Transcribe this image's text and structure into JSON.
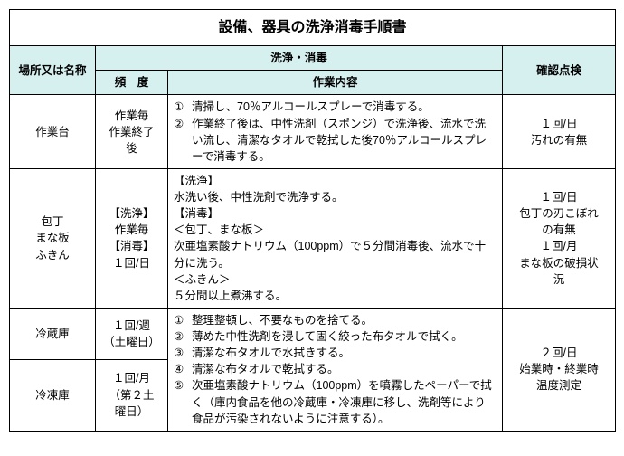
{
  "title": "設備、器具の洗浄消毒手順書",
  "headers": {
    "place": "場所又は名称",
    "clean_group": "洗浄・消毒",
    "freq": "頻　度",
    "work": "作業内容",
    "check": "確認点検"
  },
  "rows": {
    "r1": {
      "place": "作業台",
      "freq": "作業毎\n作業終了\n後",
      "work_items": [
        "清掃し、70％アルコールスプレーで消毒する。",
        "作業終了後は、中性洗剤（スポンジ）で洗浄後、流水で洗い流し、清潔なタオルで乾拭した後70％アルコールスプレーで消毒する。"
      ],
      "check": "１回/日\n汚れの有無"
    },
    "r2": {
      "place": "包丁\nまな板\nふきん",
      "freq": "【洗浄】\n作業毎\n【消毒】\n１回/日",
      "work_text": "【洗浄】\n水洗い後、中性洗剤で洗浄する。\n【消毒】\n＜包丁、まな板＞\n次亜塩素酸ナトリウム（100ppm）で５分間消毒後、流水で十分に洗う。\n＜ふきん＞\n５分間以上煮沸する。",
      "check": "１回/日\n包丁の刃こぼれ\nの有無\n１回/月\nまな板の破損状\n況"
    },
    "r3": {
      "place": "冷蔵庫",
      "freq": "１回/週\n（土曜日）",
      "work_items": [
        "整理整頓し、不要なものを捨てる。",
        "薄めた中性洗剤を浸して固く絞った布タオルで拭く。",
        "清潔な布タオルで水拭きする。",
        "清潔な布タオルで乾拭する。",
        "次亜塩素酸ナトリウム（100ppm）を噴霧したペーパーで拭く（庫内食品を他の冷蔵庫・冷凍庫に移し、洗剤等により食品が汚染されないように注意する）。"
      ],
      "check_shared": "２回/日\n始業時・終業時\n温度測定"
    },
    "r4": {
      "place": "冷凍庫",
      "freq": "１回/月\n（第２土\n曜日）"
    }
  },
  "circled": [
    "①",
    "②",
    "③",
    "④",
    "⑤"
  ]
}
